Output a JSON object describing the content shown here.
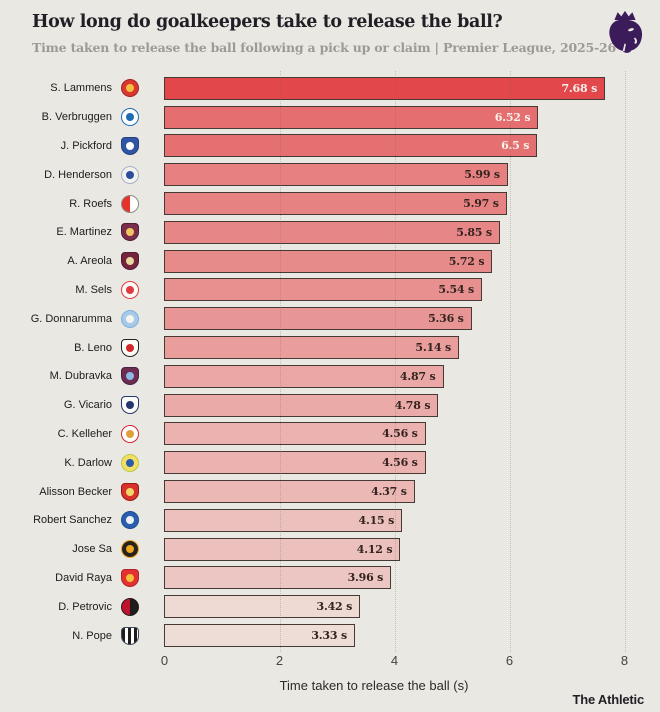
{
  "header": {
    "title": "How long do goalkeepers take to release the ball?",
    "subtitle": "Time taken to release the ball following a pick up or claim | Premier League, 2025-26",
    "logo_color": "#3b1b59"
  },
  "chart_data": {
    "type": "bar",
    "orientation": "horizontal",
    "title": "How long do goalkeepers take to release the ball?",
    "xlabel": "Time taken to release the ball (s)",
    "xlim": [
      0,
      8
    ],
    "xticks": [
      0,
      2,
      4,
      6,
      8
    ],
    "grid": "dotted-vertical",
    "unit": "s",
    "rows": [
      {
        "player": "S. Lammens",
        "team": "Manchester United",
        "value": 7.68,
        "label": "7.68 s",
        "bar_color": "#e2474b",
        "label_color": "#f8f1ea",
        "crest": {
          "shape": "circle",
          "pattern": "solid",
          "bg": "#d8392f",
          "bg2": null,
          "ring": "#aa1f1f",
          "dot": "#f2c23e"
        }
      },
      {
        "player": "B. Verbruggen",
        "team": "Brighton & Hove Albion",
        "value": 6.52,
        "label": "6.52 s",
        "bar_color": "#e56f70",
        "label_color": "#f8f1ea",
        "crest": {
          "shape": "circle",
          "pattern": "solid",
          "bg": "#ffffff",
          "bg2": null,
          "ring": "#1f6cb4",
          "dot": "#1f6cb4"
        }
      },
      {
        "player": "J. Pickford",
        "team": "Everton",
        "value": 6.5,
        "label": "6.5 s",
        "bar_color": "#e57071",
        "label_color": "#f8f1ea",
        "crest": {
          "shape": "shield",
          "pattern": "solid",
          "bg": "#2f55a4",
          "bg2": null,
          "ring": "#24407e",
          "dot": "#ffffff"
        }
      },
      {
        "player": "D. Henderson",
        "team": "Crystal Palace",
        "value": 5.99,
        "label": "5.99 s",
        "bar_color": "#e78181",
        "label_color": "#33241f",
        "crest": {
          "shape": "circle",
          "pattern": "solid",
          "bg": "#f2f2ee",
          "bg2": null,
          "ring": "#a6b0c8",
          "dot": "#2a4e9c"
        }
      },
      {
        "player": "R. Roefs",
        "team": "Sunderland",
        "value": 5.97,
        "label": "5.97 s",
        "bar_color": "#e78282",
        "label_color": "#33241f",
        "crest": {
          "shape": "circle",
          "pattern": "split",
          "bg": "#e6332d",
          "bg2": "#ffffff",
          "ring": "#8a8a86",
          "dot": null
        }
      },
      {
        "player": "E. Martinez",
        "team": "Aston Villa",
        "value": 5.85,
        "label": "5.85 s",
        "bar_color": "#e78686",
        "label_color": "#33241f",
        "crest": {
          "shape": "shield",
          "pattern": "solid",
          "bg": "#7b2d4e",
          "bg2": null,
          "ring": "#4f1c33",
          "dot": "#f0c75e"
        }
      },
      {
        "player": "A. Areola",
        "team": "West Ham United",
        "value": 5.72,
        "label": "5.72 s",
        "bar_color": "#e78a8a",
        "label_color": "#33241f",
        "crest": {
          "shape": "shield",
          "pattern": "solid",
          "bg": "#76243d",
          "bg2": null,
          "ring": "#4f1c33",
          "dot": "#e8d9a0"
        }
      },
      {
        "player": "M. Sels",
        "team": "Nottingham Forest",
        "value": 5.54,
        "label": "5.54 s",
        "bar_color": "#e8908f",
        "label_color": "#33241f",
        "crest": {
          "shape": "circle",
          "pattern": "solid",
          "bg": "#fbfbf8",
          "bg2": null,
          "ring": "#e23a3e",
          "dot": "#e23a3e"
        }
      },
      {
        "player": "G. Donnarumma",
        "team": "Manchester City",
        "value": 5.36,
        "label": "5.36 s",
        "bar_color": "#e89695",
        "label_color": "#33241f",
        "crest": {
          "shape": "circle",
          "pattern": "solid",
          "bg": "#a8c9e8",
          "bg2": null,
          "ring": "#7fb0da",
          "dot": "#f5f5f0"
        }
      },
      {
        "player": "B. Leno",
        "team": "Fulham",
        "value": 5.14,
        "label": "5.14 s",
        "bar_color": "#e99e9c",
        "label_color": "#33241f",
        "crest": {
          "shape": "shield",
          "pattern": "solid",
          "bg": "#fbfbf8",
          "bg2": null,
          "ring": "#222222",
          "dot": "#d02a2a"
        }
      },
      {
        "player": "M. Dubravka",
        "team": "Burnley",
        "value": 4.87,
        "label": "4.87 s",
        "bar_color": "#eaa7a5",
        "label_color": "#33241f",
        "crest": {
          "shape": "shield",
          "pattern": "solid",
          "bg": "#6d2c50",
          "bg2": null,
          "ring": "#472046",
          "dot": "#8cb8e6"
        }
      },
      {
        "player": "G. Vicario",
        "team": "Tottenham Hotspur",
        "value": 4.78,
        "label": "4.78 s",
        "bar_color": "#eaaaa8",
        "label_color": "#33241f",
        "crest": {
          "shape": "shield",
          "pattern": "solid",
          "bg": "#fbfbf8",
          "bg2": null,
          "ring": "#23366e",
          "dot": "#23366e"
        }
      },
      {
        "player": "C. Kelleher",
        "team": "Brentford",
        "value": 4.56,
        "label": "4.56 s",
        "bar_color": "#ebb2af",
        "label_color": "#33241f",
        "crest": {
          "shape": "circle",
          "pattern": "solid",
          "bg": "#ffffff",
          "bg2": null,
          "ring": "#d8232f",
          "dot": "#e0a13c"
        }
      },
      {
        "player": "K. Darlow",
        "team": "Leeds United",
        "value": 4.56,
        "label": "4.56 s",
        "bar_color": "#ebb2af",
        "label_color": "#33241f",
        "crest": {
          "shape": "circle",
          "pattern": "solid",
          "bg": "#f2df63",
          "bg2": null,
          "ring": "#b9ca45",
          "dot": "#2b5cab"
        }
      },
      {
        "player": "Alisson Becker",
        "team": "Liverpool",
        "value": 4.37,
        "label": "4.37 s",
        "bar_color": "#ebb8b5",
        "label_color": "#33241f",
        "crest": {
          "shape": "shield",
          "pattern": "solid",
          "bg": "#d8322d",
          "bg2": null,
          "ring": "#9b1b12",
          "dot": "#f0d96a"
        }
      },
      {
        "player": "Robert Sanchez",
        "team": "Chelsea",
        "value": 4.15,
        "label": "4.15 s",
        "bar_color": "#ecc0bc",
        "label_color": "#33241f",
        "crest": {
          "shape": "circle",
          "pattern": "solid",
          "bg": "#2a5fae",
          "bg2": null,
          "ring": "#1c4a93",
          "dot": "#eef2f8"
        }
      },
      {
        "player": "Jose Sa",
        "team": "Wolverhampton Wanderers",
        "value": 4.12,
        "label": "4.12 s",
        "bar_color": "#ecc1bd",
        "label_color": "#33241f",
        "crest": {
          "shape": "circle",
          "pattern": "solid",
          "bg": "#252320",
          "bg2": null,
          "ring": "#f0a51f",
          "dot": "#f0a51f"
        }
      },
      {
        "player": "David Raya",
        "team": "Arsenal",
        "value": 3.96,
        "label": "3.96 s",
        "bar_color": "#ecc6c2",
        "label_color": "#33241f",
        "crest": {
          "shape": "shield",
          "pattern": "solid",
          "bg": "#e2312f",
          "bg2": null,
          "ring": "#b5212a",
          "dot": "#f3c13d"
        }
      },
      {
        "player": "D. Petrovic",
        "team": "Bournemouth",
        "value": 3.42,
        "label": "3.42 s",
        "bar_color": "#eed9d3",
        "label_color": "#33241f",
        "crest": {
          "shape": "circle",
          "pattern": "split",
          "bg": "#c0112d",
          "bg2": "#1f1c1a",
          "ring": "#1f1c1a",
          "dot": null
        }
      },
      {
        "player": "N. Pope",
        "team": "Newcastle United",
        "value": 3.33,
        "label": "3.33 s",
        "bar_color": "#eedcd6",
        "label_color": "#33241f",
        "crest": {
          "shape": "shield",
          "pattern": "stripes",
          "bg": "#1f1c1a",
          "bg2": "#ffffff",
          "ring": "#3c4a58",
          "dot": null
        }
      }
    ]
  },
  "footer": {
    "credit": "The Athletic"
  },
  "colors": {
    "background": "#e9e8e3",
    "bar_border": "#453a34",
    "bar_max": "#e2474b",
    "bar_min": "#eedcd6",
    "gridline": "rgba(110,100,92,0.30)",
    "title_text": "#211f26",
    "subtitle_text": "#9d9a93"
  }
}
